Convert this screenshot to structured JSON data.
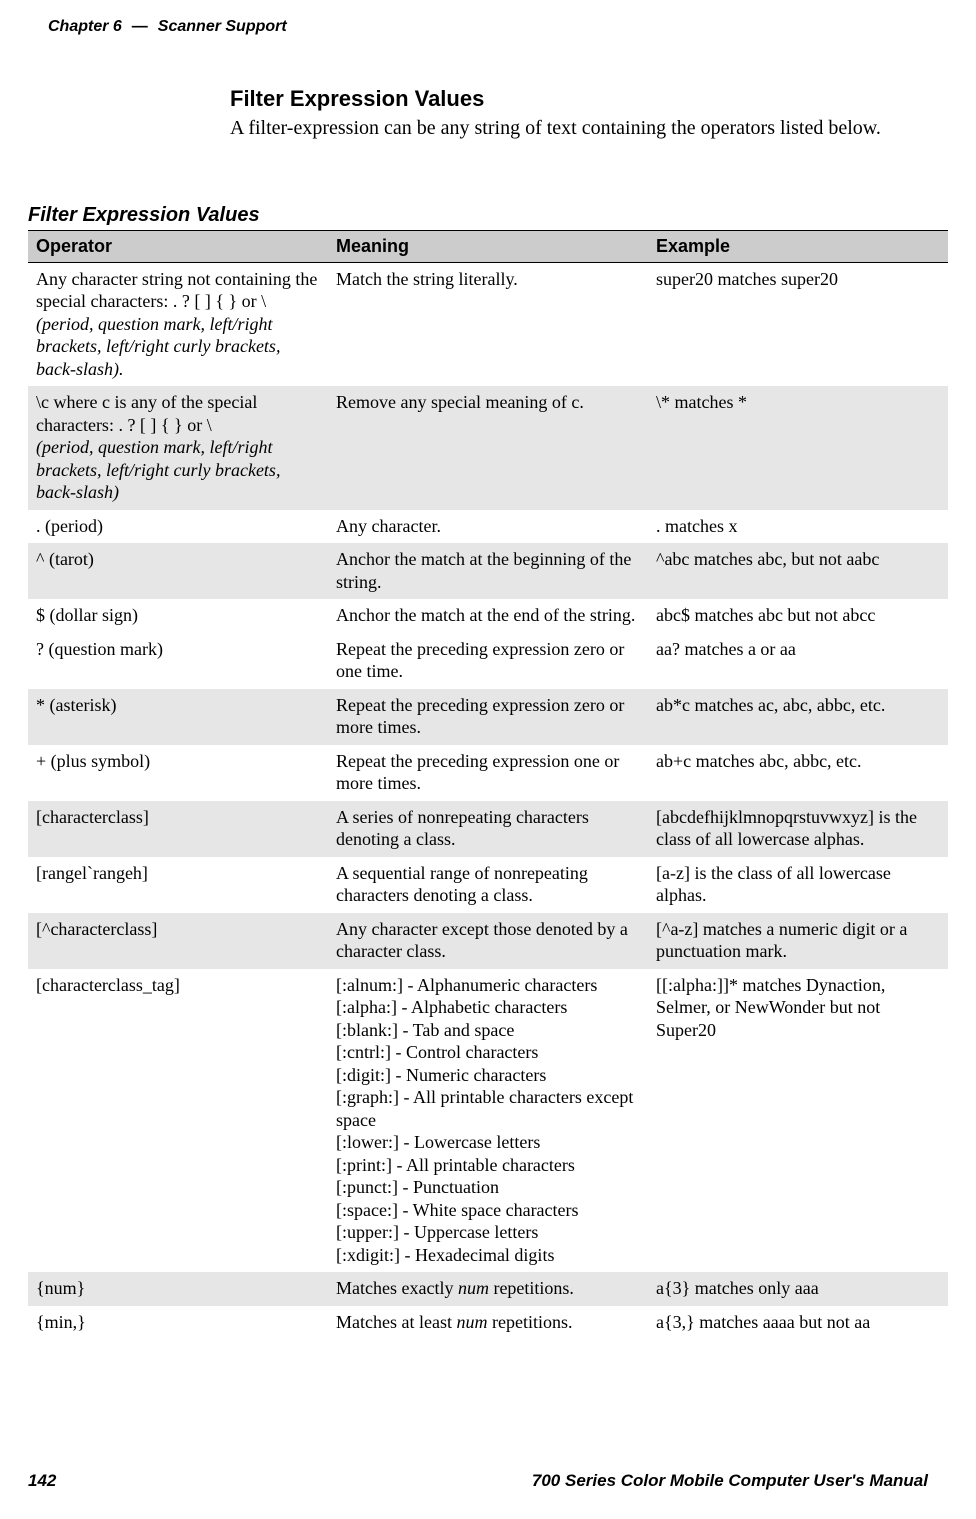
{
  "header": {
    "chapter_label": "Chapter 6",
    "chapter_title": "Scanner Support"
  },
  "section": {
    "heading": "Filter Expression Values",
    "intro": "A filter-expression can be any string of text containing the operators listed below."
  },
  "table": {
    "caption": "Filter Expression Values",
    "columns": [
      "Operator",
      "Meaning",
      "Example"
    ],
    "header_bg": "#cccccc",
    "shade_bg": "#e6e6e6",
    "rows": [
      {
        "shade": false,
        "operator_html": "Any character string not containing the special characters: . ? [ ] { } or \\<br><span class=\"italic\">(period, question mark, left/right brackets, left/right curly brackets, back-slash).</span>",
        "meaning_html": "Match the string literally.",
        "example_html": "super20 matches super20"
      },
      {
        "shade": true,
        "operator_html": "\\c where c is any of the special characters: . ? [ ] { } or \\<br><span class=\"italic\">(period, question mark, left/right brackets, left/right curly brackets, back-slash)</span>",
        "meaning_html": "Remove any special meaning of c.",
        "example_html": "\\* matches *"
      },
      {
        "shade": false,
        "operator_html": ". (period)",
        "meaning_html": "Any character.",
        "example_html": ". matches x"
      },
      {
        "shade": true,
        "operator_html": "^ (tarot)",
        "meaning_html": "Anchor the match at the beginning of the string.",
        "example_html": "^abc matches abc, but not aabc"
      },
      {
        "shade": false,
        "operator_html": "$ (dollar sign)",
        "meaning_html": "Anchor the match at the end of the string.",
        "example_html": "abc$ matches abc but not abcc"
      },
      {
        "shade": false,
        "operator_html": "? (question mark)",
        "meaning_html": "Repeat the preceding expression zero or one time.",
        "example_html": "aa? matches a or aa"
      },
      {
        "shade": true,
        "operator_html": "* (asterisk)",
        "meaning_html": "Repeat the preceding expression zero or more times.",
        "example_html": "ab*c matches ac, abc, abbc, etc."
      },
      {
        "shade": false,
        "operator_html": "+ (plus symbol)",
        "meaning_html": "Repeat the preceding expression one or more times.",
        "example_html": "ab+c matches abc, abbc, etc."
      },
      {
        "shade": true,
        "operator_html": "[characterclass]",
        "meaning_html": "A series of nonrepeating characters denoting a class.",
        "example_html": "[abcdefhijklmnopqrstuvwxyz] is the class of all lowercase alphas."
      },
      {
        "shade": false,
        "operator_html": "[rangel`rangeh]",
        "meaning_html": "A sequential range of nonrepeating characters denoting a class.",
        "example_html": "[a-z] is the class of all lowercase alphas."
      },
      {
        "shade": true,
        "operator_html": "[^characterclass]",
        "meaning_html": "Any character except those denoted by a character class.",
        "example_html": "[^a-z] matches a numeric digit or a punctuation mark."
      },
      {
        "shade": false,
        "operator_html": "[characterclass_tag]",
        "meaning_html": "[:alnum:] - Alphanumeric characters<br>[:alpha:] - Alphabetic characters<br>[:blank:] - Tab and space<br>[:cntrl:] - Control characters<br>[:digit:] - Numeric characters<br>[:graph:] - All printable characters except space<br>[:lower:] - Lowercase letters<br>[:print:] - All printable characters<br>[:punct:] - Punctuation<br>[:space:] - White space characters<br>[:upper:] - Uppercase letters<br>[:xdigit:] - Hexadecimal digits",
        "example_html": "[[:alpha:]]* matches Dynaction, Selmer, or NewWonder but not Super20"
      },
      {
        "shade": true,
        "operator_html": "{num}",
        "meaning_html": "Matches exactly <em class=\"kw\">num</em> repetitions.",
        "example_html": "a{3} matches only aaa"
      },
      {
        "shade": false,
        "operator_html": "{min,}",
        "meaning_html": "Matches at least <em class=\"kw\">num</em> repetitions.",
        "example_html": "a{3,} matches aaaa but not aa"
      }
    ]
  },
  "footer": {
    "page_number": "142",
    "manual_title": "700 Series Color Mobile Computer User's Manual"
  }
}
